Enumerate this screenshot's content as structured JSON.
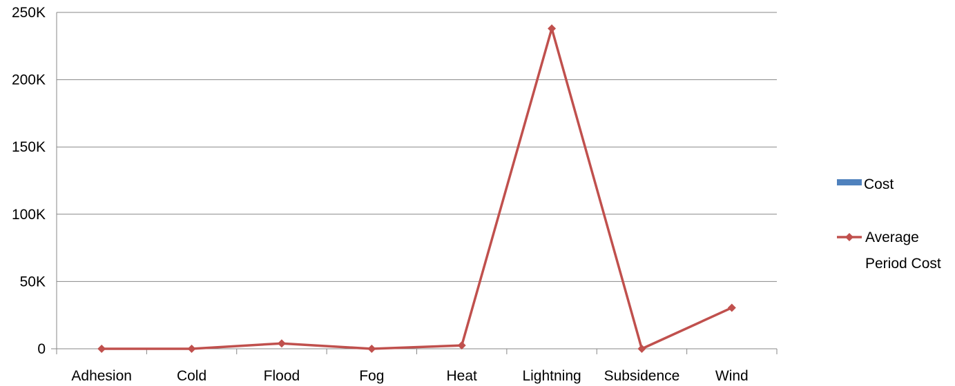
{
  "chart_data": {
    "type": "line",
    "categories": [
      "Adhesion",
      "Cold",
      "Flood",
      "Fog",
      "Heat",
      "Lightning",
      "Subsidence",
      "Wind"
    ],
    "y_ticks": [
      "0",
      "50K",
      "100K",
      "150K",
      "200K",
      "250K"
    ],
    "ylim": [
      0,
      250000
    ],
    "grid": true,
    "legend_position": "right",
    "series": [
      {
        "name": "Cost",
        "color": "#4F81BD",
        "marker": "square",
        "values": [
          0,
          0,
          0,
          0,
          0,
          0,
          0,
          0
        ]
      },
      {
        "name": "Average Period Cost",
        "color": "#C0504D",
        "marker": "diamond",
        "values": [
          0,
          0,
          4000,
          0,
          2500,
          238000,
          0,
          30500
        ]
      }
    ],
    "legend": {
      "cost_label": "Cost",
      "avg_label_line1": "Average",
      "avg_label_line2": "Period Cost"
    }
  }
}
